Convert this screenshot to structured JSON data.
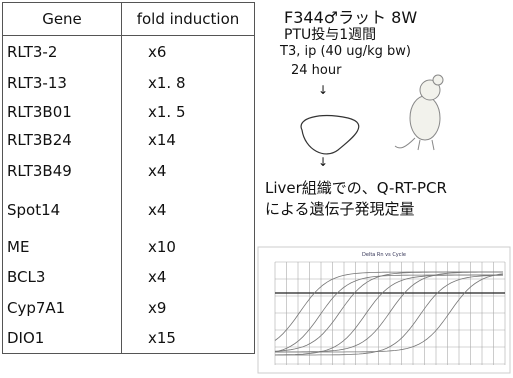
{
  "table": {
    "header": [
      "Gene",
      "fold induction"
    ],
    "rows": [
      [
        "RLT3-2",
        "x6"
      ],
      [
        "RLT3-13",
        "x1. 8"
      ],
      [
        "RLT3B01",
        "x1. 5"
      ],
      [
        "RLT3B24",
        "x14"
      ],
      [
        "RLT3B49",
        "x4"
      ],
      [
        "Spot14",
        "x4"
      ],
      [
        "ME",
        "x10"
      ],
      [
        "BCL3",
        "x4"
      ],
      [
        "Cyp7A1",
        "x9"
      ],
      [
        "DIO1",
        "x15"
      ]
    ]
  },
  "protocol": {
    "line1": "F344♂ラット 8W",
    "line2": "PTU投与1週間",
    "line3": "T3, ip (40 ug/kg bw)",
    "line4": "24 hour",
    "arrow1": "↓",
    "arrow2": "↓",
    "line5": "Liver組織での、Q-RT-PCR",
    "line6": "による遺伝子発現定量"
  },
  "plot": {
    "title": "Delta Rn vs Cycle"
  }
}
